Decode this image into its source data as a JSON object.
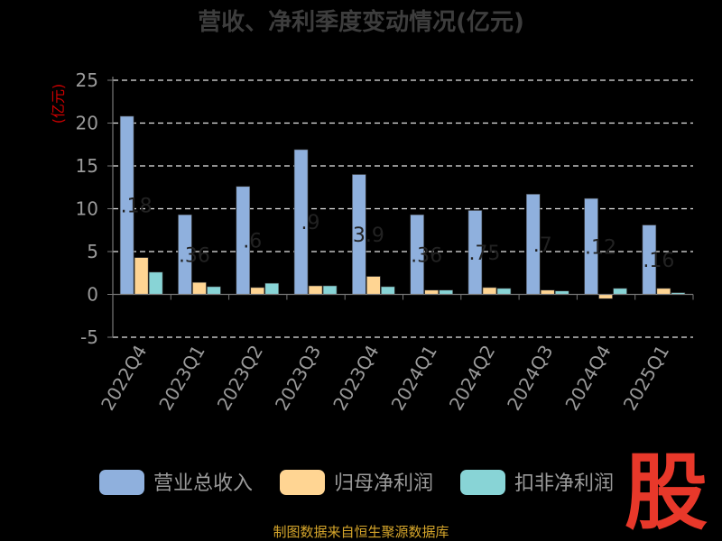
{
  "chart_data": {
    "type": "bar",
    "title": "营收、净利季度变动情况(亿元)",
    "ylabel": "(亿元)",
    "ylim": [
      -5,
      25
    ],
    "yticks": [
      25,
      20,
      15,
      10,
      5,
      0,
      -5
    ],
    "grid": true,
    "legend_position": "bottom",
    "categories": [
      "2022Q4",
      "2023Q1",
      "2023Q2",
      "2023Q3",
      "2023Q4",
      "2024Q1",
      "2024Q2",
      "2024Q3",
      "2024Q4",
      "2025Q1"
    ],
    "series": [
      {
        "name": "营业总收入",
        "color": "#8fb0dd",
        "values": [
          20.8,
          9.3,
          12.6,
          16.9,
          14.0,
          9.3,
          9.8,
          11.7,
          11.2,
          8.1
        ]
      },
      {
        "name": "归母净利润",
        "color": "#ffd593",
        "values": [
          4.3,
          1.4,
          0.8,
          1.0,
          2.1,
          0.5,
          0.8,
          0.5,
          -0.5,
          0.7
        ]
      },
      {
        "name": "扣非净利润",
        "color": "#88d4d6",
        "values": [
          2.6,
          0.9,
          1.3,
          1.0,
          0.9,
          0.5,
          0.7,
          0.4,
          0.7,
          0.2
        ]
      }
    ],
    "data_labels": [
      ".18",
      ".36",
      ".6",
      ".9",
      "3.9",
      ".36",
      ".75",
      ".7",
      ".12",
      ".16"
    ]
  },
  "footer": {
    "source": "制图数据来自恒生聚源数据库",
    "logo_text": "股"
  }
}
